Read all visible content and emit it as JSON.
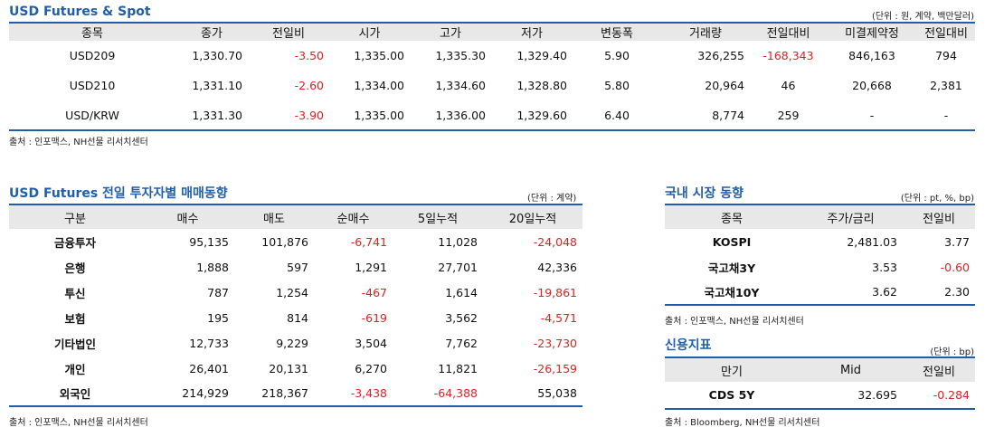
{
  "futures_spot": {
    "title": "USD Futures & Spot",
    "unit": "(단위 : 원, 계약, 백만달러)",
    "headers": [
      "종목",
      "종가",
      "전일비",
      "시가",
      "고가",
      "저가",
      "변동폭",
      "거래량",
      "전일대비",
      "미결제약정",
      "전일대비"
    ],
    "rows": [
      [
        "USD209",
        "1,330.70",
        "-3.50",
        "1,335.00",
        "1,335.30",
        "1,329.40",
        "5.90",
        "326,255",
        "-168,343",
        "846,163",
        "794"
      ],
      [
        "USD210",
        "1,331.10",
        "-2.60",
        "1,334.00",
        "1,334.60",
        "1,328.80",
        "5.80",
        "20,964",
        "46",
        "20,668",
        "2,381"
      ],
      [
        "USD/KRW",
        "1,331.30",
        "-3.90",
        "1,335.00",
        "1,336.00",
        "1,329.60",
        "6.40",
        "8,774",
        "259",
        "-",
        "-"
      ]
    ],
    "source": "출처 : 인포맥스, NH선물 리서치센터"
  },
  "investor_flow": {
    "title": "USD Futures 전일 투자자별 매매동향",
    "unit": "(단위 : 계약)",
    "headers": [
      "구분",
      "매수",
      "매도",
      "순매수",
      "5일누적",
      "20일누적"
    ],
    "rows": [
      [
        "금융투자",
        "95,135",
        "101,876",
        "-6,741",
        "11,028",
        "-24,048"
      ],
      [
        "은행",
        "1,888",
        "597",
        "1,291",
        "27,701",
        "42,336"
      ],
      [
        "투신",
        "787",
        "1,254",
        "-467",
        "1,614",
        "-19,861"
      ],
      [
        "보험",
        "195",
        "814",
        "-619",
        "3,562",
        "-4,571"
      ],
      [
        "기타법인",
        "12,733",
        "9,229",
        "3,504",
        "7,762",
        "-23,730"
      ],
      [
        "개인",
        "26,401",
        "20,131",
        "6,270",
        "11,821",
        "-26,159"
      ],
      [
        "외국인",
        "214,929",
        "218,367",
        "-3,438",
        "-64,388",
        "55,038"
      ]
    ],
    "source": "출처 : 인포맥스, NH선물 리서치센터"
  },
  "domestic_market": {
    "title": "국내 시장 동향",
    "unit": "(단위 : pt, %, bp)",
    "headers": [
      "종목",
      "주가/금리",
      "전일비"
    ],
    "rows": [
      [
        "KOSPI",
        "2,481.03",
        "3.77"
      ],
      [
        "국고채3Y",
        "3.53",
        "-0.60"
      ],
      [
        "국고채10Y",
        "3.62",
        "2.30"
      ]
    ],
    "source": "출처 : 인포맥스, NH선물 리서치센터"
  },
  "credit": {
    "title": "신용지표",
    "unit": "(단위 : bp)",
    "headers": [
      "만기",
      "Mid",
      "전일비"
    ],
    "rows": [
      [
        "CDS 5Y",
        "32.695",
        "-0.284"
      ]
    ],
    "source": "출처 : Bloomberg, NH선물 리서치센터"
  },
  "colors": {
    "title": "#1f5faa",
    "negative": "#e02020",
    "header_bg": "#e8e8e8",
    "rule": "#1f5faa"
  }
}
